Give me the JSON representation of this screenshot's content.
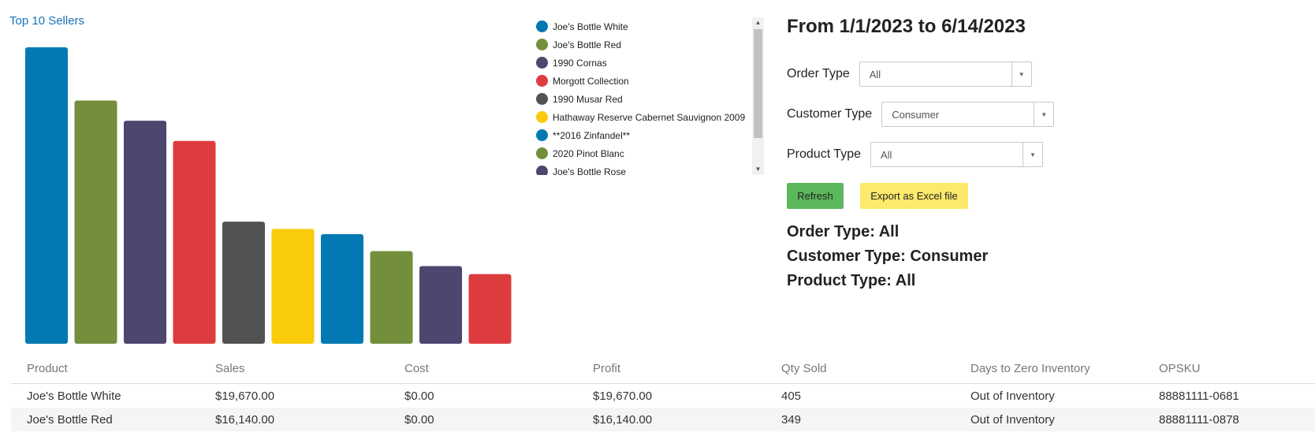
{
  "chart": {
    "title_link": "Top 10 Sellers",
    "legend_scroll_up": "▲",
    "legend_scroll_down": "▼"
  },
  "chart_data": {
    "type": "bar",
    "categories": [
      "Joe's Bottle White",
      "Joe's Bottle Red",
      "1990 Cornas",
      "Morgott Collection",
      "1990 Musar Red",
      "Hathaway Reserve Cabernet Sauvignon 2009",
      "**2016 Zinfandel**",
      "2020 Pinot Blanc",
      "Joe's Bottle Rose",
      ""
    ],
    "values": [
      19670,
      16140,
      14800,
      13460,
      8100,
      7620,
      7270,
      6150,
      5150,
      4620
    ],
    "colors": [
      "#0279b3",
      "#738f3c",
      "#4e466f",
      "#dd3c3e",
      "#525252",
      "#f9cb0a",
      "#0279b3",
      "#738f3c",
      "#4e466f",
      "#dd3c3e"
    ],
    "ylim": [
      0,
      20500
    ],
    "grid": false,
    "legend_position": "right"
  },
  "filters": {
    "date_range": "From 1/1/2023 to 6/14/2023",
    "order_type_label": "Order Type",
    "order_type_value": "All",
    "customer_type_label": "Customer Type",
    "customer_type_value": "Consumer",
    "product_type_label": "Product Type",
    "product_type_value": "All",
    "caret": "▼"
  },
  "buttons": {
    "refresh": "Refresh",
    "export": "Export as Excel file"
  },
  "summary": {
    "order_type": "Order Type: All",
    "customer_type": "Customer Type: Consumer",
    "product_type": "Product Type: All"
  },
  "table": {
    "headers": [
      "Product",
      "Sales",
      "Cost",
      "Profit",
      "Qty Sold",
      "Days to Zero Inventory",
      "OPSKU"
    ],
    "rows": [
      [
        "Joe's Bottle White",
        "$19,670.00",
        "$0.00",
        "$19,670.00",
        "405",
        "Out of Inventory",
        "88881111-0681"
      ],
      [
        "Joe's Bottle Red",
        "$16,140.00",
        "$0.00",
        "$16,140.00",
        "349",
        "Out of Inventory",
        "88881111-0878"
      ]
    ]
  }
}
